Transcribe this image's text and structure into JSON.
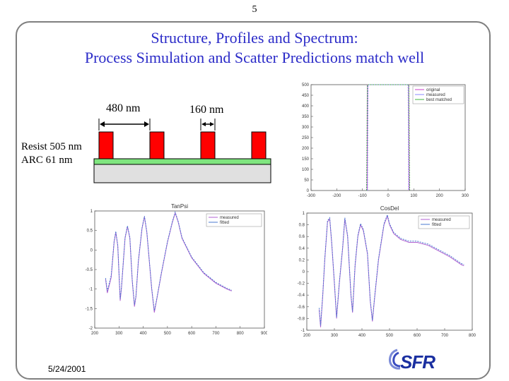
{
  "slide": {
    "page_number": "5",
    "title_line1": "Structure, Profiles and Spectrum:",
    "title_line2": "Process Simulation and Scatter Predictions match well",
    "date": "5/24/2001",
    "logo_text": "SFR"
  },
  "diagram": {
    "pitch_label": "480 nm",
    "linewidth_label": "160 nm",
    "stack_line1": "Resist 505 nm",
    "stack_line2": "ARC 61 nm",
    "colors": {
      "resist": "#ff0000",
      "arc": "#7fe57f",
      "substrate": "#e0e0e0"
    }
  },
  "chart_data": [
    {
      "id": "profile",
      "type": "line",
      "title": "",
      "xlabel": "",
      "ylabel": "",
      "xlim": [
        -300,
        300
      ],
      "ylim": [
        0,
        500
      ],
      "xticks": [
        "-300",
        "-200",
        "-100",
        "0",
        "100",
        "200",
        "300"
      ],
      "yticks": [
        "0",
        "50",
        "100",
        "150",
        "200",
        "250",
        "300",
        "350",
        "400",
        "450",
        "500"
      ],
      "legend": [
        "original",
        "measured",
        "best matched"
      ],
      "series": [
        {
          "name": "original",
          "color": "#c83cc8",
          "points": [
            [
              -82,
              0
            ],
            [
              -80,
              500
            ],
            [
              80,
              500
            ],
            [
              82,
              0
            ]
          ]
        },
        {
          "name": "measured",
          "color": "#8888ff",
          "points": [
            [
              -80,
              0
            ],
            [
              -78,
              500
            ],
            [
              78,
              500
            ],
            [
              80,
              0
            ]
          ]
        },
        {
          "name": "best matched",
          "color": "#3cb43c",
          "points": [
            [
              -84,
              0
            ],
            [
              -81,
              500
            ],
            [
              81,
              500
            ],
            [
              84,
              0
            ]
          ]
        }
      ]
    },
    {
      "id": "tanpsi",
      "type": "line",
      "title": "TanPsi",
      "xlabel": "",
      "ylabel": "",
      "xlim": [
        200,
        900
      ],
      "ylim": [
        -2,
        1
      ],
      "xticks": [
        "200",
        "300",
        "400",
        "500",
        "600",
        "700",
        "800",
        "900"
      ],
      "yticks": [
        "1",
        "0.5",
        "0",
        "-0.5",
        "-1",
        "-1.5",
        "-2"
      ],
      "legend": [
        "measured",
        "fitted"
      ],
      "series": [
        {
          "name": "measured",
          "color": "#b060d0",
          "points": [
            [
              245,
              -0.75
            ],
            [
              252,
              -1.1
            ],
            [
              258,
              -0.95
            ],
            [
              268,
              -0.7
            ],
            [
              280,
              0.2
            ],
            [
              287,
              0.45
            ],
            [
              295,
              0.1
            ],
            [
              305,
              -1.3
            ],
            [
              310,
              -1.0
            ],
            [
              325,
              0.3
            ],
            [
              335,
              0.6
            ],
            [
              345,
              0.3
            ],
            [
              355,
              -0.8
            ],
            [
              364,
              -1.45
            ],
            [
              370,
              -1.2
            ],
            [
              380,
              -0.3
            ],
            [
              395,
              0.55
            ],
            [
              405,
              0.85
            ],
            [
              415,
              0.45
            ],
            [
              435,
              -1.0
            ],
            [
              446,
              -1.6
            ],
            [
              455,
              -1.3
            ],
            [
              475,
              -0.6
            ],
            [
              500,
              0.2
            ],
            [
              520,
              0.7
            ],
            [
              532,
              0.95
            ],
            [
              545,
              0.7
            ],
            [
              560,
              0.3
            ],
            [
              600,
              -0.2
            ],
            [
              650,
              -0.6
            ],
            [
              700,
              -0.85
            ],
            [
              745,
              -1.0
            ],
            [
              765,
              -1.05
            ]
          ]
        },
        {
          "name": "fitted",
          "color": "#4a7ad0",
          "points": [
            [
              245,
              -0.72
            ],
            [
              252,
              -1.05
            ],
            [
              258,
              -0.9
            ],
            [
              268,
              -0.65
            ],
            [
              280,
              0.22
            ],
            [
              287,
              0.48
            ],
            [
              295,
              0.12
            ],
            [
              305,
              -1.25
            ],
            [
              310,
              -0.98
            ],
            [
              325,
              0.32
            ],
            [
              335,
              0.62
            ],
            [
              345,
              0.32
            ],
            [
              355,
              -0.78
            ],
            [
              364,
              -1.4
            ],
            [
              370,
              -1.18
            ],
            [
              380,
              -0.28
            ],
            [
              395,
              0.57
            ],
            [
              405,
              0.87
            ],
            [
              415,
              0.47
            ],
            [
              435,
              -0.98
            ],
            [
              446,
              -1.55
            ],
            [
              455,
              -1.28
            ],
            [
              475,
              -0.58
            ],
            [
              500,
              0.22
            ],
            [
              520,
              0.72
            ],
            [
              532,
              0.97
            ],
            [
              545,
              0.72
            ],
            [
              560,
              0.32
            ],
            [
              600,
              -0.18
            ],
            [
              650,
              -0.58
            ],
            [
              700,
              -0.83
            ],
            [
              745,
              -0.98
            ],
            [
              765,
              -1.03
            ]
          ]
        }
      ]
    },
    {
      "id": "cosdel",
      "type": "line",
      "title": "CosDel",
      "xlabel": "",
      "ylabel": "",
      "xlim": [
        200,
        800
      ],
      "ylim": [
        -1,
        1
      ],
      "xticks": [
        "200",
        "300",
        "400",
        "500",
        "600",
        "700",
        "800"
      ],
      "yticks": [
        "1",
        "0.8",
        "0.6",
        "0.4",
        "0.2",
        "0",
        "-0.2",
        "-0.4",
        "-0.6",
        "-0.8",
        "-1"
      ],
      "legend": [
        "measured",
        "fitted"
      ],
      "series": [
        {
          "name": "measured",
          "color": "#b060d0",
          "points": [
            [
              245,
              -0.65
            ],
            [
              250,
              -0.95
            ],
            [
              258,
              -0.4
            ],
            [
              265,
              0.2
            ],
            [
              275,
              0.85
            ],
            [
              283,
              0.9
            ],
            [
              290,
              0.5
            ],
            [
              300,
              -0.2
            ],
            [
              308,
              -0.8
            ],
            [
              318,
              -0.2
            ],
            [
              330,
              0.4
            ],
            [
              338,
              0.9
            ],
            [
              348,
              0.6
            ],
            [
              360,
              -0.4
            ],
            [
              366,
              -0.7
            ],
            [
              375,
              0.1
            ],
            [
              385,
              0.6
            ],
            [
              395,
              0.8
            ],
            [
              405,
              0.7
            ],
            [
              420,
              0.3
            ],
            [
              430,
              -0.5
            ],
            [
              438,
              -0.85
            ],
            [
              445,
              -0.5
            ],
            [
              460,
              0.2
            ],
            [
              480,
              0.8
            ],
            [
              492,
              0.95
            ],
            [
              500,
              0.8
            ],
            [
              515,
              0.65
            ],
            [
              540,
              0.55
            ],
            [
              570,
              0.5
            ],
            [
              600,
              0.5
            ],
            [
              640,
              0.45
            ],
            [
              680,
              0.35
            ],
            [
              720,
              0.25
            ],
            [
              760,
              0.12
            ],
            [
              770,
              0.1
            ]
          ]
        },
        {
          "name": "fitted",
          "color": "#4a7ad0",
          "points": [
            [
              245,
              -0.62
            ],
            [
              250,
              -0.92
            ],
            [
              258,
              -0.38
            ],
            [
              265,
              0.22
            ],
            [
              275,
              0.87
            ],
            [
              283,
              0.92
            ],
            [
              290,
              0.52
            ],
            [
              300,
              -0.18
            ],
            [
              308,
              -0.78
            ],
            [
              318,
              -0.18
            ],
            [
              330,
              0.42
            ],
            [
              338,
              0.92
            ],
            [
              348,
              0.62
            ],
            [
              360,
              -0.38
            ],
            [
              366,
              -0.68
            ],
            [
              375,
              0.12
            ],
            [
              385,
              0.62
            ],
            [
              395,
              0.82
            ],
            [
              405,
              0.72
            ],
            [
              420,
              0.32
            ],
            [
              430,
              -0.48
            ],
            [
              438,
              -0.83
            ],
            [
              445,
              -0.48
            ],
            [
              460,
              0.22
            ],
            [
              480,
              0.82
            ],
            [
              492,
              0.97
            ],
            [
              500,
              0.82
            ],
            [
              515,
              0.67
            ],
            [
              540,
              0.57
            ],
            [
              570,
              0.52
            ],
            [
              600,
              0.52
            ],
            [
              640,
              0.47
            ],
            [
              680,
              0.37
            ],
            [
              720,
              0.27
            ],
            [
              760,
              0.14
            ],
            [
              770,
              0.12
            ]
          ]
        }
      ]
    }
  ]
}
